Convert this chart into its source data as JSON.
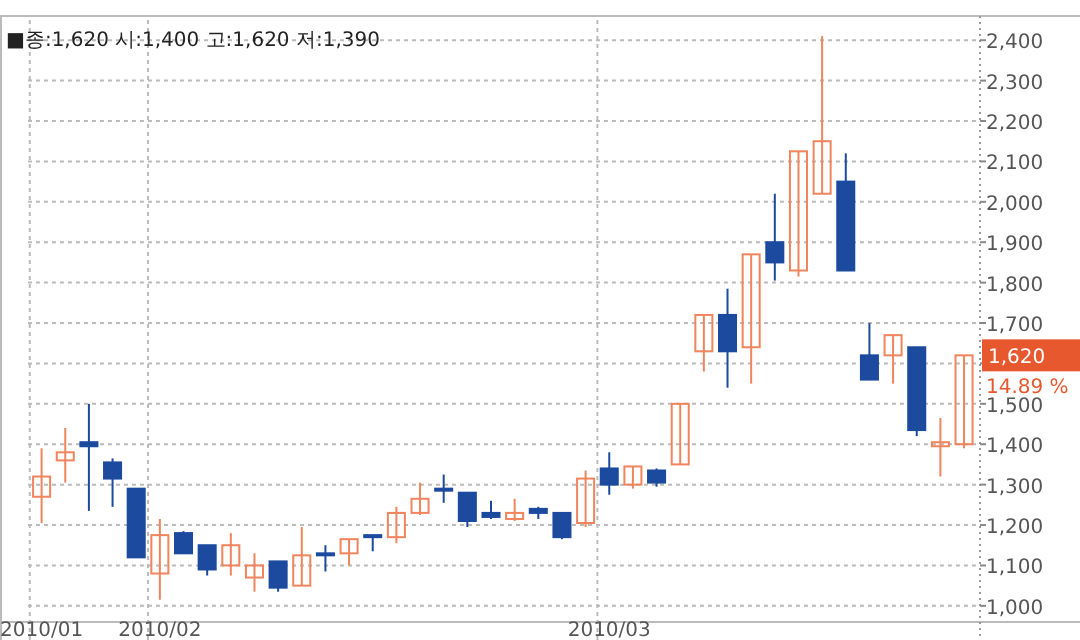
{
  "chart_data": {
    "type": "candlestick",
    "categories": [
      "2010/01",
      null,
      null,
      null,
      null,
      "2010/02",
      null,
      null,
      null,
      null,
      null,
      null,
      null,
      null,
      null,
      null,
      null,
      null,
      null,
      null,
      null,
      null,
      null,
      null,
      "2010/03",
      null,
      null,
      null,
      null,
      null,
      null,
      null,
      null,
      null,
      null,
      null,
      null,
      null,
      null,
      null
    ],
    "ohlc": [
      [
        1270,
        1390,
        1205,
        1320
      ],
      [
        1360,
        1440,
        1305,
        1380
      ],
      [
        1405,
        1500,
        1235,
        1395
      ],
      [
        1355,
        1365,
        1245,
        1315
      ],
      [
        1290,
        1290,
        1120,
        1120
      ],
      [
        1080,
        1215,
        1015,
        1175
      ],
      [
        1180,
        1185,
        1130,
        1130
      ],
      [
        1150,
        1150,
        1075,
        1090
      ],
      [
        1100,
        1180,
        1075,
        1150
      ],
      [
        1070,
        1130,
        1035,
        1100
      ],
      [
        1110,
        1110,
        1035,
        1045
      ],
      [
        1050,
        1195,
        1050,
        1125
      ],
      [
        1130,
        1150,
        1085,
        1125
      ],
      [
        1130,
        1165,
        1100,
        1165
      ],
      [
        1175,
        1175,
        1135,
        1170
      ],
      [
        1170,
        1245,
        1155,
        1230
      ],
      [
        1230,
        1305,
        1225,
        1265
      ],
      [
        1290,
        1325,
        1255,
        1285
      ],
      [
        1280,
        1280,
        1195,
        1210
      ],
      [
        1230,
        1260,
        1215,
        1220
      ],
      [
        1215,
        1265,
        1210,
        1230
      ],
      [
        1240,
        1245,
        1215,
        1230
      ],
      [
        1230,
        1230,
        1165,
        1170
      ],
      [
        1205,
        1335,
        1195,
        1315
      ],
      [
        1340,
        1380,
        1275,
        1300
      ],
      [
        1300,
        1345,
        1290,
        1345
      ],
      [
        1335,
        1340,
        1295,
        1305
      ],
      [
        1350,
        1500,
        1350,
        1500
      ],
      [
        1630,
        1720,
        1580,
        1720
      ],
      [
        1720,
        1785,
        1540,
        1630
      ],
      [
        1640,
        1870,
        1550,
        1870
      ],
      [
        1900,
        2020,
        1805,
        1850
      ],
      [
        1830,
        2125,
        1815,
        2125
      ],
      [
        2020,
        2410,
        2020,
        2150
      ],
      [
        2050,
        2120,
        1830,
        1830
      ],
      [
        1620,
        1700,
        1560,
        1560
      ],
      [
        1620,
        1670,
        1550,
        1670
      ],
      [
        1640,
        1640,
        1420,
        1435
      ],
      [
        1395,
        1465,
        1320,
        1405
      ],
      [
        1400,
        1620,
        1390,
        1620
      ]
    ],
    "colors": [
      "#f0845c",
      "#f0845c",
      "#1b4a9e",
      "#1b4a9e",
      "#1b4a9e",
      "#f0845c",
      "#1b4a9e",
      "#1b4a9e",
      "#f0845c",
      "#f0845c",
      "#1b4a9e",
      "#f0845c",
      "#1b4a9e",
      "#f0845c",
      "#1b4a9e",
      "#f0845c",
      "#f0845c",
      "#1b4a9e",
      "#1b4a9e",
      "#1b4a9e",
      "#f0845c",
      "#1b4a9e",
      "#1b4a9e",
      "#f0845c",
      "#1b4a9e",
      "#f0845c",
      "#1b4a9e",
      "#f0845c",
      "#f0845c",
      "#1b4a9e",
      "#f0845c",
      "#1b4a9e",
      "#f0845c",
      "#f0845c",
      "#1b4a9e",
      "#1b4a9e",
      "#f0845c",
      "#1b4a9e",
      "#f0845c",
      "#f0845c"
    ],
    "ylim": [
      960,
      2450
    ],
    "yticks": [
      {
        "value": 1000,
        "label": "1,000"
      },
      {
        "value": 1100,
        "label": "1,100"
      },
      {
        "value": 1200,
        "label": "1,200"
      },
      {
        "value": 1300,
        "label": "1,300"
      },
      {
        "value": 1400,
        "label": "1,400"
      },
      {
        "value": 1500,
        "label": "1,500"
      },
      {
        "value": 1600,
        "label": null
      },
      {
        "value": 1700,
        "label": "1,700"
      },
      {
        "value": 1800,
        "label": "1,800"
      },
      {
        "value": 1900,
        "label": "1,900"
      },
      {
        "value": 2000,
        "label": "2,000"
      },
      {
        "value": 2100,
        "label": "2,100"
      },
      {
        "value": 2200,
        "label": "2,200"
      },
      {
        "value": 2300,
        "label": "2,300"
      },
      {
        "value": 2400,
        "label": "2,400"
      }
    ],
    "grid": true,
    "annotations": [
      "■종:1,620  시:1,400  고:1,620  저:1,390",
      "1,620",
      "14.89 %"
    ]
  }
}
